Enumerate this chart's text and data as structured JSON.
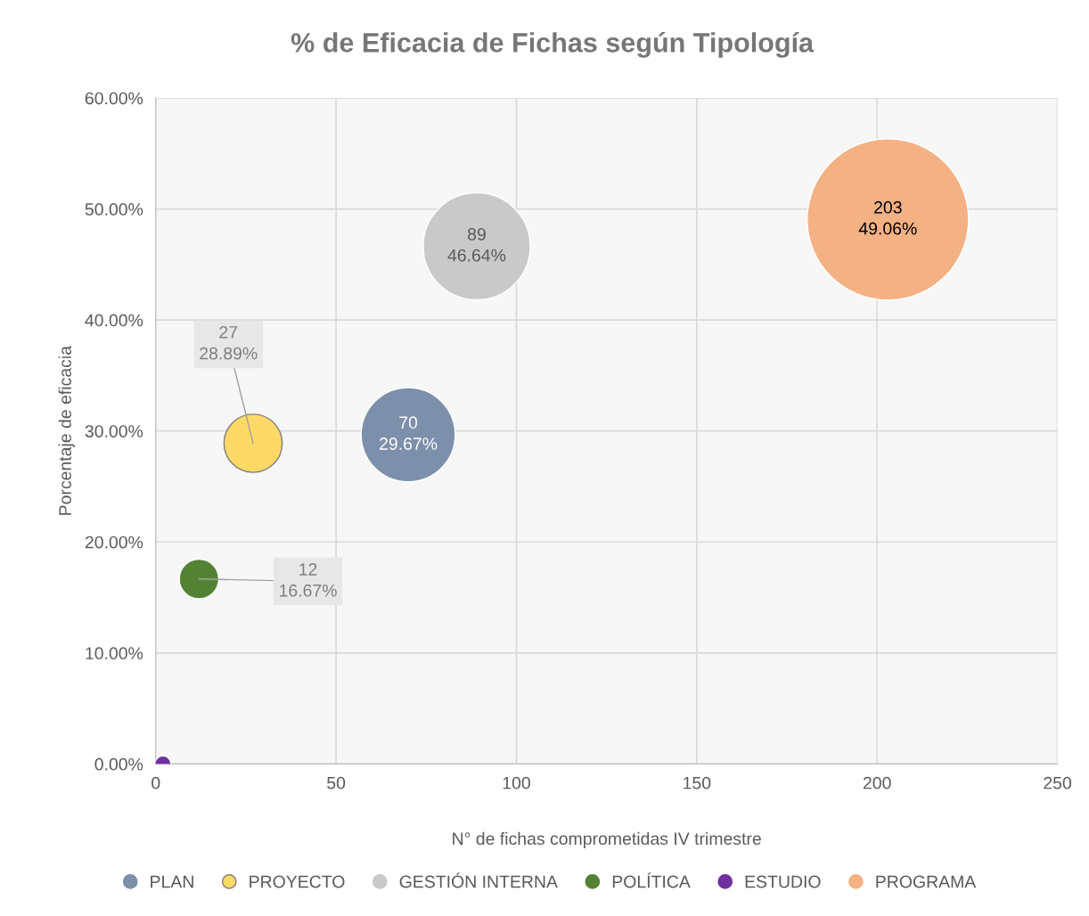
{
  "chart_data": {
    "type": "bubble",
    "title": "% de Eficacia de Fichas según Tipología",
    "xlabel": "N° de fichas comprometidas IV trimestre",
    "ylabel": "Porcentaje de eficacia",
    "series": [
      {
        "name": "PLAN",
        "color": "#7c8fab",
        "x": [
          70
        ],
        "values": [
          29.67
        ],
        "sizes": [
          0.34
        ],
        "value_labels": [
          "70\n29.67%"
        ]
      },
      {
        "name": "PROYECTO",
        "color": "#ffd966",
        "x": [
          27
        ],
        "values": [
          28.89
        ],
        "sizes": [
          0.13
        ],
        "value_labels": [
          "27\n28.89%"
        ]
      },
      {
        "name": "GESTIÓN INTERNA",
        "color": "#c9c9c9",
        "x": [
          89
        ],
        "values": [
          46.64
        ],
        "sizes": [
          0.44
        ],
        "value_labels": [
          "89\n46.64%"
        ]
      },
      {
        "name": "POLÍTICA",
        "color": "#548235",
        "x": [
          12
        ],
        "values": [
          16.67
        ],
        "sizes": [
          0.06
        ],
        "value_labels": [
          "12\n16.67%"
        ]
      },
      {
        "name": "ESTUDIO",
        "color": "#7030a0",
        "x": [
          2
        ],
        "values": [
          0
        ],
        "sizes": [
          0.01
        ],
        "value_labels": [
          null
        ]
      },
      {
        "name": "PROGRAMA",
        "color": "#f4b183",
        "x": [
          203
        ],
        "values": [
          49.06
        ],
        "sizes": [
          1
        ],
        "value_labels": [
          "203\n49.06%"
        ]
      }
    ],
    "xlim": [
      0,
      250
    ],
    "xticks": [
      0,
      50,
      100,
      150,
      200,
      250
    ],
    "ylim": [
      0,
      60
    ],
    "yticks": [
      {
        "value": 0,
        "label": "0.00%"
      },
      {
        "value": 10,
        "label": "10.00%"
      },
      {
        "value": 20,
        "label": "20.00%"
      },
      {
        "value": 30,
        "label": "30.00%"
      },
      {
        "value": 40,
        "label": "40.00%"
      },
      {
        "value": 50,
        "label": "50.00%"
      },
      {
        "value": 60,
        "label": "60.00%"
      }
    ],
    "grid": true,
    "legend": "bottom"
  }
}
